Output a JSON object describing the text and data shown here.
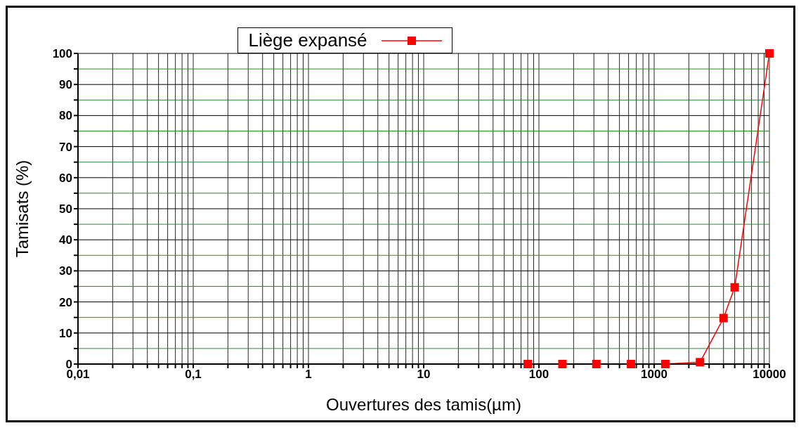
{
  "chart_data": {
    "type": "line",
    "xlabel": "Ouvertures des tamis(µm)",
    "ylabel": "Tamisats (%)",
    "log": "x",
    "xlim": [
      0.01,
      10000
    ],
    "xticks": [
      {
        "value": 0.01,
        "label": "0,01"
      },
      {
        "value": 0.02,
        "label": null
      },
      {
        "value": 0.03,
        "label": null
      },
      {
        "value": 0.04,
        "label": null
      },
      {
        "value": 0.05,
        "label": null
      },
      {
        "value": 0.06,
        "label": null
      },
      {
        "value": 0.07,
        "label": null
      },
      {
        "value": 0.08,
        "label": null
      },
      {
        "value": 0.09,
        "label": null
      },
      {
        "value": 0.1,
        "label": "0,1"
      },
      {
        "value": 0.2,
        "label": null
      },
      {
        "value": 0.3,
        "label": null
      },
      {
        "value": 0.4,
        "label": null
      },
      {
        "value": 0.5,
        "label": null
      },
      {
        "value": 0.6,
        "label": null
      },
      {
        "value": 0.7,
        "label": null
      },
      {
        "value": 0.8,
        "label": null
      },
      {
        "value": 0.9,
        "label": null
      },
      1,
      {
        "value": 2,
        "label": null
      },
      {
        "value": 3,
        "label": null
      },
      {
        "value": 4,
        "label": null
      },
      {
        "value": 5,
        "label": null
      },
      {
        "value": 6,
        "label": null
      },
      {
        "value": 7,
        "label": null
      },
      {
        "value": 8,
        "label": null
      },
      {
        "value": 9,
        "label": null
      },
      10,
      {
        "value": 20,
        "label": null
      },
      {
        "value": 30,
        "label": null
      },
      {
        "value": 40,
        "label": null
      },
      {
        "value": 50,
        "label": null
      },
      {
        "value": 60,
        "label": null
      },
      {
        "value": 70,
        "label": null
      },
      {
        "value": 80,
        "label": null
      },
      {
        "value": 90,
        "label": null
      },
      100,
      {
        "value": 200,
        "label": null
      },
      {
        "value": 300,
        "label": null
      },
      {
        "value": 400,
        "label": null
      },
      {
        "value": 500,
        "label": null
      },
      {
        "value": 600,
        "label": null
      },
      {
        "value": 700,
        "label": null
      },
      {
        "value": 800,
        "label": null
      },
      {
        "value": 900,
        "label": null
      },
      1000,
      {
        "value": 2000,
        "label": null
      },
      {
        "value": 3000,
        "label": null
      },
      {
        "value": 4000,
        "label": null
      },
      {
        "value": 5000,
        "label": null
      },
      {
        "value": 6000,
        "label": null
      },
      {
        "value": 7000,
        "label": null
      },
      {
        "value": 8000,
        "label": null
      },
      {
        "value": 9000,
        "label": null
      },
      10000
    ],
    "ylim": [
      0,
      100
    ],
    "yticks": [
      0,
      {
        "value": 5,
        "label": null
      },
      10,
      {
        "value": 15,
        "label": null
      },
      20,
      {
        "value": 25,
        "label": null
      },
      30,
      {
        "value": 35,
        "label": null
      },
      40,
      {
        "value": 45,
        "label": null
      },
      50,
      {
        "value": 55,
        "label": null
      },
      60,
      {
        "value": 65,
        "label": null
      },
      70,
      {
        "value": 75,
        "label": null
      },
      80,
      {
        "value": 85,
        "label": null
      },
      90,
      {
        "value": 95,
        "label": null
      },
      100
    ],
    "grid": true,
    "legend": "top",
    "marker": "square",
    "line_style": "solid",
    "x": [
      80,
      160,
      315,
      630,
      1250,
      2500,
      4000,
      5000,
      10000
    ],
    "series": [
      {
        "name": "Liège expansé",
        "color": "#ff0000",
        "values": [
          0,
          0,
          0,
          0,
          0,
          0.6,
          14.8,
          24.7,
          100
        ]
      }
    ]
  }
}
